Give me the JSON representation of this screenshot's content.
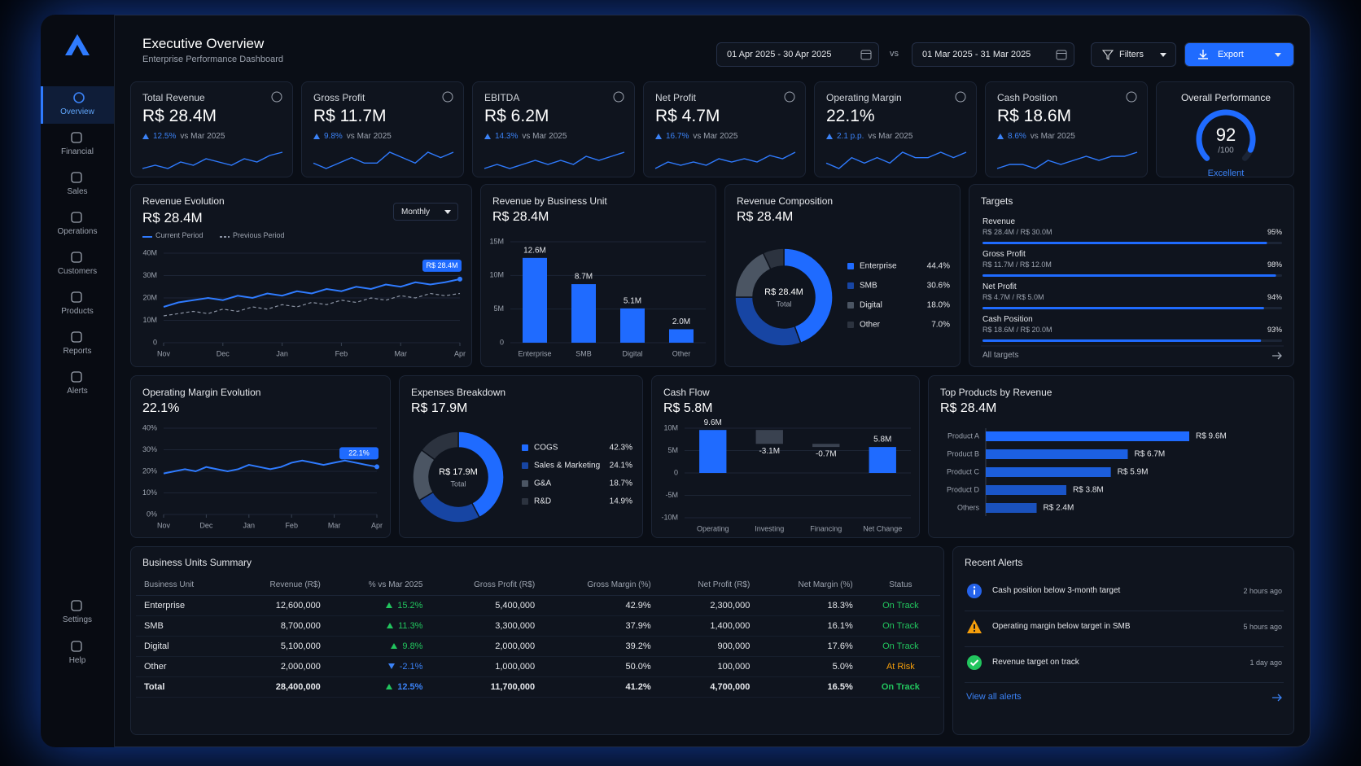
{
  "sidebar": {
    "items": [
      "Overview",
      "Financial",
      "Sales",
      "Operations",
      "Customers",
      "Products",
      "Reports",
      "Alerts"
    ],
    "bottom": [
      "Settings",
      "Help"
    ],
    "active": 0
  },
  "header": {
    "title": "Executive Overview",
    "subtitle": "Enterprise Performance Dashboard",
    "date_range": "01 Apr 2025 - 30 Apr 2025",
    "vs": "vs",
    "compare_range": "01 Mar 2025 - 31 Mar 2025",
    "filters": "Filters",
    "export": "Export"
  },
  "kpis": [
    {
      "label": "Total Revenue",
      "value": "R$ 28.4M",
      "change": "12.5%",
      "compare": "vs Mar 2025",
      "spark": [
        5,
        6,
        5,
        7,
        6,
        8,
        7,
        6,
        8,
        7,
        9,
        10
      ]
    },
    {
      "label": "Gross Profit",
      "value": "R$ 11.7M",
      "change": "9.8%",
      "compare": "vs Mar 2025",
      "spark": [
        6,
        5,
        6,
        7,
        6,
        6,
        8,
        7,
        6,
        8,
        7,
        8
      ]
    },
    {
      "label": "EBITDA",
      "value": "R$ 6.2M",
      "change": "14.3%",
      "compare": "vs Mar 2025",
      "spark": [
        5,
        6,
        5,
        6,
        7,
        6,
        7,
        6,
        8,
        7,
        8,
        9
      ]
    },
    {
      "label": "Net Profit",
      "value": "R$ 4.7M",
      "change": "16.7%",
      "compare": "vs Mar 2025",
      "spark": [
        4,
        6,
        5,
        6,
        5,
        7,
        6,
        7,
        6,
        8,
        7,
        9
      ]
    },
    {
      "label": "Operating Margin",
      "value": "22.1%",
      "change": "2.1 p.p.",
      "compare": "vs Mar 2025",
      "spark": [
        6,
        5,
        7,
        6,
        7,
        6,
        8,
        7,
        7,
        8,
        7,
        8
      ]
    },
    {
      "label": "Cash Position",
      "value": "R$ 18.6M",
      "change": "8.6%",
      "compare": "vs Mar 2025",
      "spark": [
        5,
        6,
        6,
        5,
        7,
        6,
        7,
        8,
        7,
        8,
        8,
        9
      ]
    }
  ],
  "performance": {
    "title": "Overall Performance",
    "score": 92,
    "max": {
      "value": 100,
      "label": "/100"
    },
    "rating": "Excellent",
    "color": "#1f6bff"
  },
  "revenue_evolution": {
    "type": "line",
    "title": "Revenue Evolution",
    "value": "R$ 28.4M",
    "period": "Monthly",
    "end_label": "R$ 28.4M",
    "x": [
      0,
      0.25,
      0.5,
      0.75,
      1,
      1.25,
      1.5,
      1.75,
      2,
      2.25,
      2.5,
      2.75,
      3,
      3.25,
      3.5,
      3.75,
      4,
      4.25,
      4.5,
      4.75,
      5
    ],
    "xlim": [
      0,
      5
    ],
    "xticks": [
      {
        "value": 0,
        "label": "Nov"
      },
      {
        "value": 1,
        "label": "Dec"
      },
      {
        "value": 2,
        "label": "Jan"
      },
      {
        "value": 3,
        "label": "Feb"
      },
      {
        "value": 4,
        "label": "Mar"
      },
      {
        "value": 5,
        "label": "Apr"
      }
    ],
    "ylim": [
      0,
      40
    ],
    "yticks": [
      0,
      {
        "value": 10,
        "label": "10M"
      },
      {
        "value": 20,
        "label": "20M"
      },
      {
        "value": 30,
        "label": "30M"
      },
      {
        "value": 40,
        "label": "40M"
      }
    ],
    "series": [
      {
        "name": "Current Period",
        "color": "#2f7bff",
        "values": [
          16,
          18,
          19,
          20,
          19,
          21,
          20,
          22,
          21,
          23,
          22,
          24,
          23,
          25,
          24,
          26,
          25,
          27,
          26,
          27,
          28.4
        ]
      },
      {
        "name": "Previous Period",
        "color": "#8b93a3",
        "dashed": true,
        "values": [
          12,
          13,
          14,
          13,
          15,
          14,
          16,
          15,
          17,
          16,
          18,
          17,
          19,
          18,
          20,
          19,
          21,
          20,
          22,
          21,
          22
        ]
      }
    ]
  },
  "revenue_by_unit": {
    "type": "bar",
    "title": "Revenue by Business Unit",
    "value": "R$ 28.4M",
    "color": "#1f6bff",
    "categories": [
      "Enterprise",
      "SMB",
      "Digital",
      "Other"
    ],
    "values": [
      12.6,
      8.7,
      5.1,
      2.0
    ],
    "value_labels": [
      "12.6M",
      "8.7M",
      "5.1M",
      "2.0M"
    ],
    "ylim": [
      0,
      15
    ],
    "yticks": [
      0,
      {
        "value": 5,
        "label": "5M"
      },
      {
        "value": 10,
        "label": "10M"
      },
      {
        "value": 15,
        "label": "15M"
      }
    ]
  },
  "revenue_composition": {
    "type": "donut",
    "title": "Revenue Composition",
    "value": "R$ 28.4M",
    "center_value": "R$ 28.4M",
    "center_label": "Total",
    "categories": [
      "Enterprise",
      "SMB",
      "Digital",
      "Other"
    ],
    "values": [
      44.4,
      30.6,
      18.0,
      7.0
    ],
    "value_labels": [
      "44.4%",
      "30.6%",
      "18.0%",
      "7.0%"
    ],
    "colors": [
      "#1f6bff",
      "#1745a3",
      "#4b5563",
      "#2c333f"
    ]
  },
  "targets": {
    "title": "Targets",
    "scale": [
      0,
      100
    ],
    "color": "#1f6bff",
    "link": "All targets",
    "items": [
      {
        "label": "Revenue",
        "detail": "R$ 28.4M / R$ 30.0M",
        "value": 95,
        "value_label": "95%"
      },
      {
        "label": "Gross Profit",
        "detail": "R$ 11.7M / R$ 12.0M",
        "value": 98,
        "value_label": "98%"
      },
      {
        "label": "Net Profit",
        "detail": "R$ 4.7M / R$ 5.0M",
        "value": 94,
        "value_label": "94%"
      },
      {
        "label": "Cash Position",
        "detail": "R$ 18.6M / R$ 20.0M",
        "value": 93,
        "value_label": "93%"
      }
    ]
  },
  "operating_margin": {
    "type": "line",
    "title": "Operating Margin Evolution",
    "value": "22.1%",
    "end_label": "22.1%",
    "x": [
      0,
      0.25,
      0.5,
      0.75,
      1,
      1.25,
      1.5,
      1.75,
      2,
      2.25,
      2.5,
      2.75,
      3,
      3.25,
      3.5,
      3.75,
      4,
      4.25,
      4.5,
      4.75,
      5
    ],
    "xlim": [
      0,
      5
    ],
    "xticks": [
      {
        "value": 0,
        "label": "Nov"
      },
      {
        "value": 1,
        "label": "Dec"
      },
      {
        "value": 2,
        "label": "Jan"
      },
      {
        "value": 3,
        "label": "Feb"
      },
      {
        "value": 4,
        "label": "Mar"
      },
      {
        "value": 5,
        "label": "Apr"
      }
    ],
    "ylim": [
      0,
      40
    ],
    "yticks": [
      {
        "value": 0,
        "label": "0%"
      },
      {
        "value": 10,
        "label": "10%"
      },
      {
        "value": 20,
        "label": "20%"
      },
      {
        "value": 30,
        "label": "30%"
      },
      {
        "value": 40,
        "label": "40%"
      }
    ],
    "series": [
      {
        "name": "Operating Margin",
        "color": "#2f7bff",
        "values": [
          19,
          20,
          21,
          20,
          22,
          21,
          20,
          21,
          23,
          22,
          21,
          22,
          24,
          25,
          24,
          23,
          24,
          25,
          24,
          23,
          22.1
        ]
      }
    ]
  },
  "expenses": {
    "type": "donut",
    "title": "Expenses Breakdown",
    "value": "R$ 17.9M",
    "center_value": "R$ 17.9M",
    "center_label": "Total",
    "categories": [
      "COGS",
      "Sales & Marketing",
      "G&A",
      "R&D"
    ],
    "values": [
      42.3,
      24.1,
      18.7,
      14.9
    ],
    "value_labels": [
      "42.3%",
      "24.1%",
      "18.7%",
      "14.9%"
    ],
    "colors": [
      "#1f6bff",
      "#1745a3",
      "#4b5563",
      "#2c333f"
    ]
  },
  "cash_flow": {
    "type": "waterfall",
    "title": "Cash Flow",
    "value": "R$ 5.8M",
    "color": "#1f6bff",
    "negative_color": "#3a4250",
    "categories": [
      "Operating",
      "Investing",
      "Financing",
      "Net Change"
    ],
    "values": [
      9.6,
      -3.1,
      -0.7,
      5.8
    ],
    "value_labels": [
      "9.6M",
      "-3.1M",
      "-0.7M",
      "5.8M"
    ],
    "ylim": [
      -10,
      10
    ],
    "yticks": [
      {
        "value": -10,
        "label": "-10M"
      },
      {
        "value": -5,
        "label": "-5M"
      },
      0,
      {
        "value": 5,
        "label": "5M"
      },
      {
        "value": 10,
        "label": "10M"
      }
    ]
  },
  "top_products": {
    "type": "hbar",
    "title": "Top Products by Revenue",
    "value": "R$ 28.4M",
    "color": "#1f6bff",
    "categories": [
      "Product A",
      "Product B",
      "Product C",
      "Product D",
      "Others"
    ],
    "values": [
      9.6,
      6.7,
      5.9,
      3.8,
      2.4
    ],
    "value_labels": [
      "R$ 9.6M",
      "R$ 6.7M",
      "R$ 5.9M",
      "R$ 3.8M",
      "R$ 2.4M"
    ]
  },
  "table": {
    "title": "Business Units Summary",
    "headers": [
      "Business Unit",
      "Revenue (R$)",
      "% vs Mar 2025",
      "Gross Profit (R$)",
      "Gross Margin (%)",
      "Net Profit (R$)",
      "Net Margin (%)",
      "Status"
    ],
    "rows": [
      [
        "Enterprise",
        "12,600,000",
        "15.2%",
        "5,400,000",
        "42.9%",
        "2,300,000",
        "18.3%",
        "On Track"
      ],
      [
        "SMB",
        "8,700,000",
        "11.3%",
        "3,300,000",
        "37.9%",
        "1,400,000",
        "16.1%",
        "On Track"
      ],
      [
        "Digital",
        "5,100,000",
        "9.8%",
        "2,000,000",
        "39.2%",
        "900,000",
        "17.6%",
        "On Track"
      ],
      [
        "Other",
        "2,000,000",
        "-2.1%",
        "1,000,000",
        "50.0%",
        "100,000",
        "5.0%",
        "At Risk"
      ]
    ],
    "total": [
      "Total",
      "28,400,000",
      "12.5%",
      "11,700,000",
      "41.2%",
      "4,700,000",
      "16.5%",
      "On Track"
    ],
    "status_colors": {
      "On Track": "#22c55e",
      "At Risk": "#f59e0b"
    }
  },
  "alerts": {
    "title": "Recent Alerts",
    "link": "View all alerts",
    "items": [
      {
        "text": "Cash position below 3-month target",
        "time": "2 hours ago",
        "icon": "info",
        "color": "#2563eb"
      },
      {
        "text": "Operating margin below target in SMB",
        "time": "5 hours ago",
        "icon": "warning",
        "color": "#f59e0b"
      },
      {
        "text": "Revenue target on track",
        "time": "1 day ago",
        "icon": "check",
        "color": "#22c55e"
      }
    ]
  }
}
